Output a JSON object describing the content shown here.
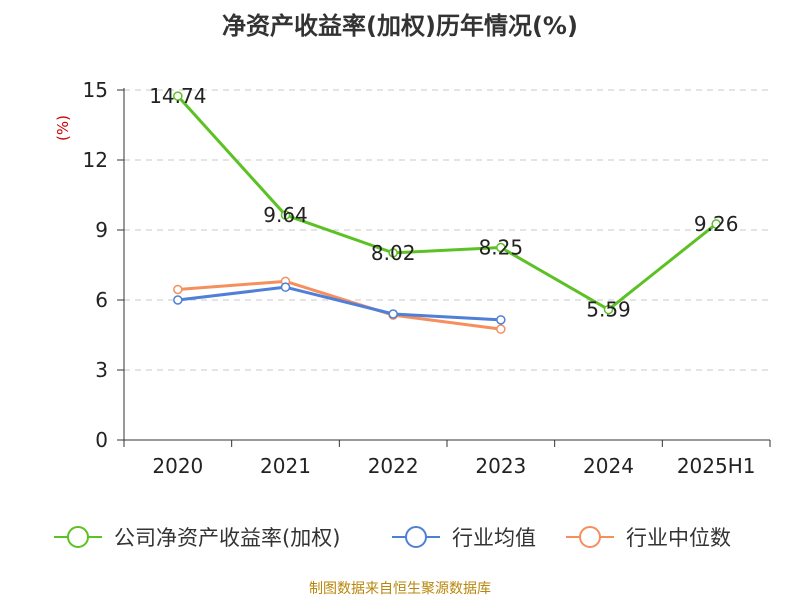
{
  "chart_data": {
    "type": "line",
    "title": "净资产收益率(加权)历年情况(%)",
    "ylabel": "(%)",
    "xlabel": "",
    "categories": [
      "2020",
      "2021",
      "2022",
      "2023",
      "2024",
      "2025H1"
    ],
    "ylim": [
      0,
      15
    ],
    "yticks": [
      0,
      3,
      6,
      9,
      12,
      15
    ],
    "grid": true,
    "legend_position": "bottom",
    "series": [
      {
        "name": "公司净资产收益率(加权)",
        "color": "#5cc124",
        "values": [
          14.74,
          9.64,
          8.02,
          8.25,
          5.59,
          9.26
        ],
        "show_labels": true
      },
      {
        "name": "行业均值",
        "color": "#4f7fd8",
        "values": [
          6.0,
          6.55,
          5.4,
          5.15,
          null,
          null
        ],
        "show_labels": false
      },
      {
        "name": "行业中位数",
        "color": "#f58f5e",
        "values": [
          6.45,
          6.8,
          5.35,
          4.75,
          null,
          null
        ],
        "show_labels": false
      }
    ],
    "source": "制图数据来自恒生聚源数据库"
  }
}
